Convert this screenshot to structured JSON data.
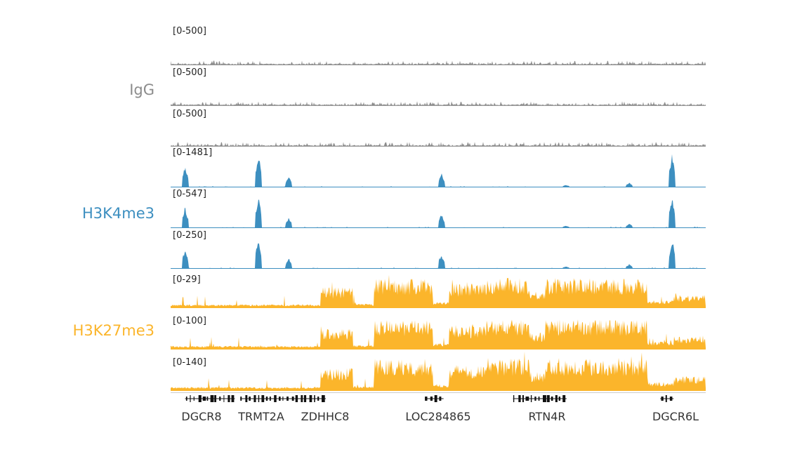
{
  "colors": {
    "IgG": "#8c8c8c",
    "H3K4me3": "#3d8fc0",
    "H3K27me3": "#fbb52b",
    "genes": "#111111"
  },
  "groups": [
    {
      "name": "IgG",
      "color_key": "IgG"
    },
    {
      "name": "H3K4me3",
      "color_key": "H3K4me3"
    },
    {
      "name": "H3K27me3",
      "color_key": "H3K27me3"
    }
  ],
  "chart_data": {
    "type": "area",
    "description_axis": "genomic position (fraction of locus view)",
    "tracks": [
      {
        "group": "IgG",
        "range": "[0-500]",
        "max": 500,
        "pattern": "noise"
      },
      {
        "group": "IgG",
        "range": "[0-500]",
        "max": 500,
        "pattern": "noise"
      },
      {
        "group": "IgG",
        "range": "[0-500]",
        "max": 500,
        "pattern": "noise"
      },
      {
        "group": "H3K4me3",
        "range": "[0-1481]",
        "max": 1481,
        "pattern": "peaks"
      },
      {
        "group": "H3K4me3",
        "range": "[0-547]",
        "max": 547,
        "pattern": "peaks"
      },
      {
        "group": "H3K4me3",
        "range": "[0-250]",
        "max": 250,
        "pattern": "peaks"
      },
      {
        "group": "H3K27me3",
        "range": "[0-29]",
        "max": 29,
        "pattern": "broad"
      },
      {
        "group": "H3K27me3",
        "range": "[0-100]",
        "max": 100,
        "pattern": "broad"
      },
      {
        "group": "H3K27me3",
        "range": "[0-140]",
        "max": 140,
        "pattern": "broad"
      }
    ],
    "h3k4me3_peaks": [
      {
        "pos": 0.027,
        "height": 0.62
      },
      {
        "pos": 0.164,
        "height": 1.0
      },
      {
        "pos": 0.221,
        "height": 0.3
      },
      {
        "pos": 0.506,
        "height": 0.44
      },
      {
        "pos": 0.739,
        "height": 0.05
      },
      {
        "pos": 0.857,
        "height": 0.12
      },
      {
        "pos": 0.937,
        "height": 0.98
      }
    ],
    "h3k27me3_segments": [
      {
        "start": 0.0,
        "end": 0.28,
        "level": 0.08
      },
      {
        "start": 0.28,
        "end": 0.34,
        "level": 0.55
      },
      {
        "start": 0.34,
        "end": 0.38,
        "level": 0.1
      },
      {
        "start": 0.38,
        "end": 0.49,
        "level": 0.78
      },
      {
        "start": 0.49,
        "end": 0.52,
        "level": 0.15
      },
      {
        "start": 0.52,
        "end": 0.59,
        "level": 0.65
      },
      {
        "start": 0.59,
        "end": 0.67,
        "level": 0.8
      },
      {
        "start": 0.67,
        "end": 0.7,
        "level": 0.45
      },
      {
        "start": 0.7,
        "end": 0.89,
        "level": 0.8
      },
      {
        "start": 0.89,
        "end": 0.94,
        "level": 0.2
      },
      {
        "start": 0.94,
        "end": 1.0,
        "level": 0.35
      }
    ],
    "genes": [
      {
        "name": "DGCR8",
        "start": 0.027,
        "end": 0.12,
        "label_pos": 0.059
      },
      {
        "name": "TRMT2A",
        "start": 0.13,
        "end": 0.2,
        "label_pos": 0.168
      },
      {
        "name": "ZDHHC8",
        "start": 0.2,
        "end": 0.29,
        "label_pos": 0.289
      },
      {
        "name": "LOC284865",
        "start": 0.475,
        "end": 0.51,
        "label_pos": 0.48
      },
      {
        "name": "RTN4R",
        "start": 0.64,
        "end": 0.74,
        "label_pos": 0.7
      },
      {
        "name": "DGCR6L",
        "start": 0.915,
        "end": 0.94,
        "label_pos": 0.945
      }
    ]
  }
}
